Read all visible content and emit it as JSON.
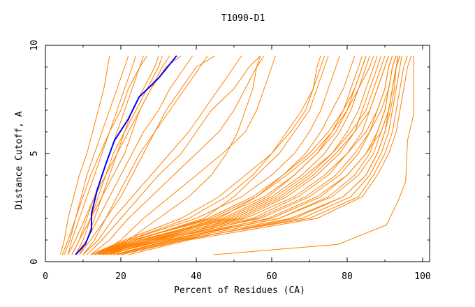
{
  "chart_data": {
    "type": "line",
    "title": "T1090-D1",
    "xlabel": "Percent of Residues (CA)",
    "ylabel": "Distance Cutoff, A",
    "xlim": [
      0,
      102
    ],
    "ylim": [
      0,
      10
    ],
    "x_ticks": [
      0,
      20,
      40,
      60,
      80,
      100
    ],
    "y_ticks": [
      0,
      5,
      10
    ],
    "grid": false,
    "colors": {
      "models": "#ff8000",
      "highlight": "#0000ff",
      "axes": "#000000"
    },
    "y_levels": [
      0.32,
      1,
      2,
      3,
      4,
      5,
      6,
      7,
      8,
      9,
      9.52
    ],
    "series": [
      {
        "x": [
          4,
          5,
          6,
          7.5,
          9,
          11,
          12.5,
          14,
          15.5,
          16.5,
          17
        ]
      },
      {
        "x": [
          5,
          6.5,
          8,
          9.5,
          11,
          13,
          15,
          17,
          19,
          21,
          22
        ]
      },
      {
        "x": [
          6,
          7,
          9,
          11,
          13,
          15,
          17,
          20,
          22,
          25,
          26
        ]
      },
      {
        "x": [
          4.5,
          6,
          8,
          10,
          12,
          14.5,
          17,
          19,
          21,
          23,
          24
        ]
      },
      {
        "x": [
          7,
          9,
          11,
          13,
          15,
          17,
          19,
          21,
          23,
          25,
          27
        ]
      },
      {
        "x": [
          8,
          10,
          12,
          14,
          16,
          18,
          21,
          24,
          27,
          30,
          31
        ]
      },
      {
        "x": [
          6,
          8,
          10.5,
          13,
          16,
          19,
          22,
          25,
          28,
          31,
          33
        ]
      },
      {
        "x": [
          9,
          11,
          13,
          15,
          18,
          21,
          23,
          25,
          28,
          32,
          36
        ]
      },
      {
        "x": [
          8,
          11,
          14,
          17,
          20,
          23,
          26,
          30,
          33,
          37,
          39
        ]
      },
      {
        "x": [
          10,
          13,
          16,
          19,
          22,
          25,
          29,
          33,
          37,
          41,
          43
        ]
      },
      {
        "x": [
          9,
          12,
          16,
          20,
          23,
          26,
          29,
          32,
          36,
          40,
          45
        ]
      },
      {
        "x": [
          7,
          9,
          12,
          15,
          17,
          19,
          21,
          23,
          26,
          29,
          30
        ]
      },
      {
        "x": [
          11,
          15,
          20,
          25,
          30,
          36,
          40,
          44,
          50,
          54,
          57
        ]
      },
      {
        "x": [
          12,
          17,
          22,
          28,
          34,
          40,
          46,
          50,
          53,
          56,
          58
        ]
      },
      {
        "x": [
          14,
          20,
          26,
          33,
          40,
          47,
          53,
          56,
          58,
          60,
          61
        ]
      },
      {
        "x": [
          15,
          22,
          30,
          38,
          44,
          48,
          51,
          53,
          55,
          56,
          57
        ]
      },
      {
        "x": [
          10,
          14,
          18,
          23,
          28,
          33,
          38,
          42,
          46,
          50,
          52
        ]
      },
      {
        "x": [
          13,
          22,
          40,
          52,
          60,
          66,
          70,
          73,
          75,
          77,
          78
        ]
      },
      {
        "x": [
          14,
          24,
          43,
          55,
          63,
          69,
          73,
          76,
          79,
          81,
          82
        ]
      },
      {
        "x": [
          12,
          23,
          45,
          58,
          66,
          72,
          76,
          79,
          81,
          83,
          84
        ]
      },
      {
        "x": [
          15,
          26,
          48,
          60,
          68,
          74,
          78,
          81,
          83,
          85,
          86
        ]
      },
      {
        "x": [
          13,
          25,
          50,
          62,
          70,
          76,
          80,
          83,
          85,
          87,
          88
        ]
      },
      {
        "x": [
          14,
          27,
          52,
          64,
          72,
          78,
          82,
          84,
          86,
          88,
          89
        ]
      },
      {
        "x": [
          16,
          28,
          55,
          67,
          75,
          80,
          84,
          86,
          88,
          90,
          91
        ]
      },
      {
        "x": [
          15,
          29,
          57,
          70,
          78,
          83,
          86,
          88,
          90,
          91,
          92
        ]
      },
      {
        "x": [
          17,
          30,
          60,
          73,
          80,
          85,
          88,
          90,
          91,
          92,
          93
        ]
      },
      {
        "x": [
          16,
          32,
          62,
          76,
          83,
          87,
          89,
          91,
          92,
          93,
          93.5
        ]
      },
      {
        "x": [
          18,
          34,
          65,
          79,
          85,
          88,
          90,
          91.5,
          92.5,
          93,
          94
        ]
      },
      {
        "x": [
          20,
          36,
          68,
          81,
          86,
          89,
          91,
          92,
          93,
          94,
          94.5
        ]
      },
      {
        "x": [
          19,
          35,
          70,
          83,
          87,
          90,
          92,
          93,
          94,
          95,
          96
        ]
      },
      {
        "x": [
          22,
          38,
          72,
          84,
          88,
          91,
          93,
          94,
          95,
          96,
          97
        ]
      },
      {
        "x": [
          13,
          24,
          42,
          50,
          56,
          62,
          66,
          70,
          72,
          74,
          75
        ]
      },
      {
        "x": [
          12,
          22,
          38,
          48,
          55,
          60,
          64,
          68,
          71,
          73,
          74
        ]
      },
      {
        "x": [
          14,
          26,
          46,
          56,
          63,
          70,
          75,
          79,
          82,
          84,
          85
        ]
      },
      {
        "x": [
          15,
          27,
          49,
          61,
          69,
          76,
          81,
          85,
          87,
          89,
          90
        ]
      },
      {
        "x": [
          17,
          29,
          53,
          66,
          74,
          80,
          85,
          88,
          90,
          91,
          92
        ]
      },
      {
        "x": [
          16,
          31,
          56,
          69,
          77,
          82,
          86,
          89,
          91,
          92,
          93
        ]
      },
      {
        "x": [
          18,
          33,
          59,
          72,
          80,
          85,
          89,
          91,
          92,
          93,
          94
        ]
      },
      {
        "x": [
          12,
          21,
          36,
          46,
          53,
          60,
          65,
          69,
          71,
          72,
          73
        ]
      },
      {
        "x": [
          14,
          25,
          47,
          59,
          66,
          72,
          77,
          80,
          82,
          84,
          85
        ]
      },
      {
        "x": [
          13,
          23,
          44,
          56,
          64,
          71,
          76,
          80,
          83,
          86,
          87
        ]
      },
      {
        "x": [
          19,
          33,
          62,
          75,
          82,
          86,
          88,
          90,
          91,
          92,
          93
        ]
      },
      {
        "x": [
          20,
          37,
          66,
          79,
          85,
          88,
          90,
          91,
          92,
          93,
          93.5
        ]
      },
      {
        "x": [
          15,
          28,
          51,
          63,
          71,
          77,
          82,
          86,
          88,
          90,
          91
        ]
      },
      {
        "x": [
          44.5,
          77.6,
          90.4,
          93.5,
          95.5,
          96,
          97.6,
          97.6
        ],
        "y": [
          0.32,
          0.8,
          1.7,
          2.8,
          3.7,
          5.6,
          6.8,
          9.52
        ]
      }
    ],
    "highlight_series": {
      "x": [
        8.0,
        10.6,
        12.2,
        12.2,
        13.7,
        16,
        18.3,
        22,
        24.8,
        30.1,
        34.8
      ],
      "y": [
        0.32,
        0.81,
        1.5,
        2.2,
        3.3,
        4.5,
        5.6,
        6.6,
        7.6,
        8.5,
        9.52
      ]
    }
  }
}
